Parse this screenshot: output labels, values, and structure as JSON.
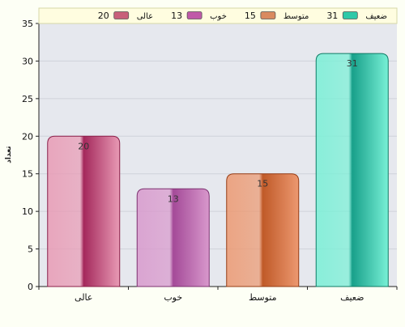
{
  "chart_data": {
    "type": "bar",
    "title": "",
    "xlabel": "",
    "ylabel": "تعداد",
    "categories": [
      "عالی",
      "خوب",
      "متوسط",
      "ضعیف"
    ],
    "values": [
      20,
      13,
      15,
      31
    ],
    "data_labels": [
      "20",
      "13",
      "15",
      "31"
    ],
    "ylim": [
      0,
      35
    ],
    "y_ticks": [
      0,
      5,
      10,
      15,
      20,
      25,
      30,
      35
    ],
    "y_tick_labels": [
      "0",
      "5",
      "10",
      "15",
      "20",
      "25",
      "30",
      "35"
    ],
    "grid": true,
    "legend_position": "top",
    "legend": [
      {
        "label": "ضعیف",
        "value": "31",
        "color": "#2ec9a8"
      },
      {
        "label": "متوسط",
        "value": "15",
        "color": "#d98a5f"
      },
      {
        "label": "خوب",
        "value": "13",
        "color": "#c05aa8"
      },
      {
        "label": "عالی",
        "value": "20",
        "color": "#c8607a"
      }
    ],
    "bar_colors": [
      {
        "dark": "#a4285c",
        "light": "#e89ab4",
        "edge": "#8a1e48"
      },
      {
        "dark": "#a44a98",
        "light": "#d898cc",
        "edge": "#7c3070"
      },
      {
        "dark": "#c05a28",
        "light": "#ec9870",
        "edge": "#963c14"
      },
      {
        "dark": "#18a08a",
        "light": "#78f0d6",
        "edge": "#0f7a64"
      }
    ]
  }
}
